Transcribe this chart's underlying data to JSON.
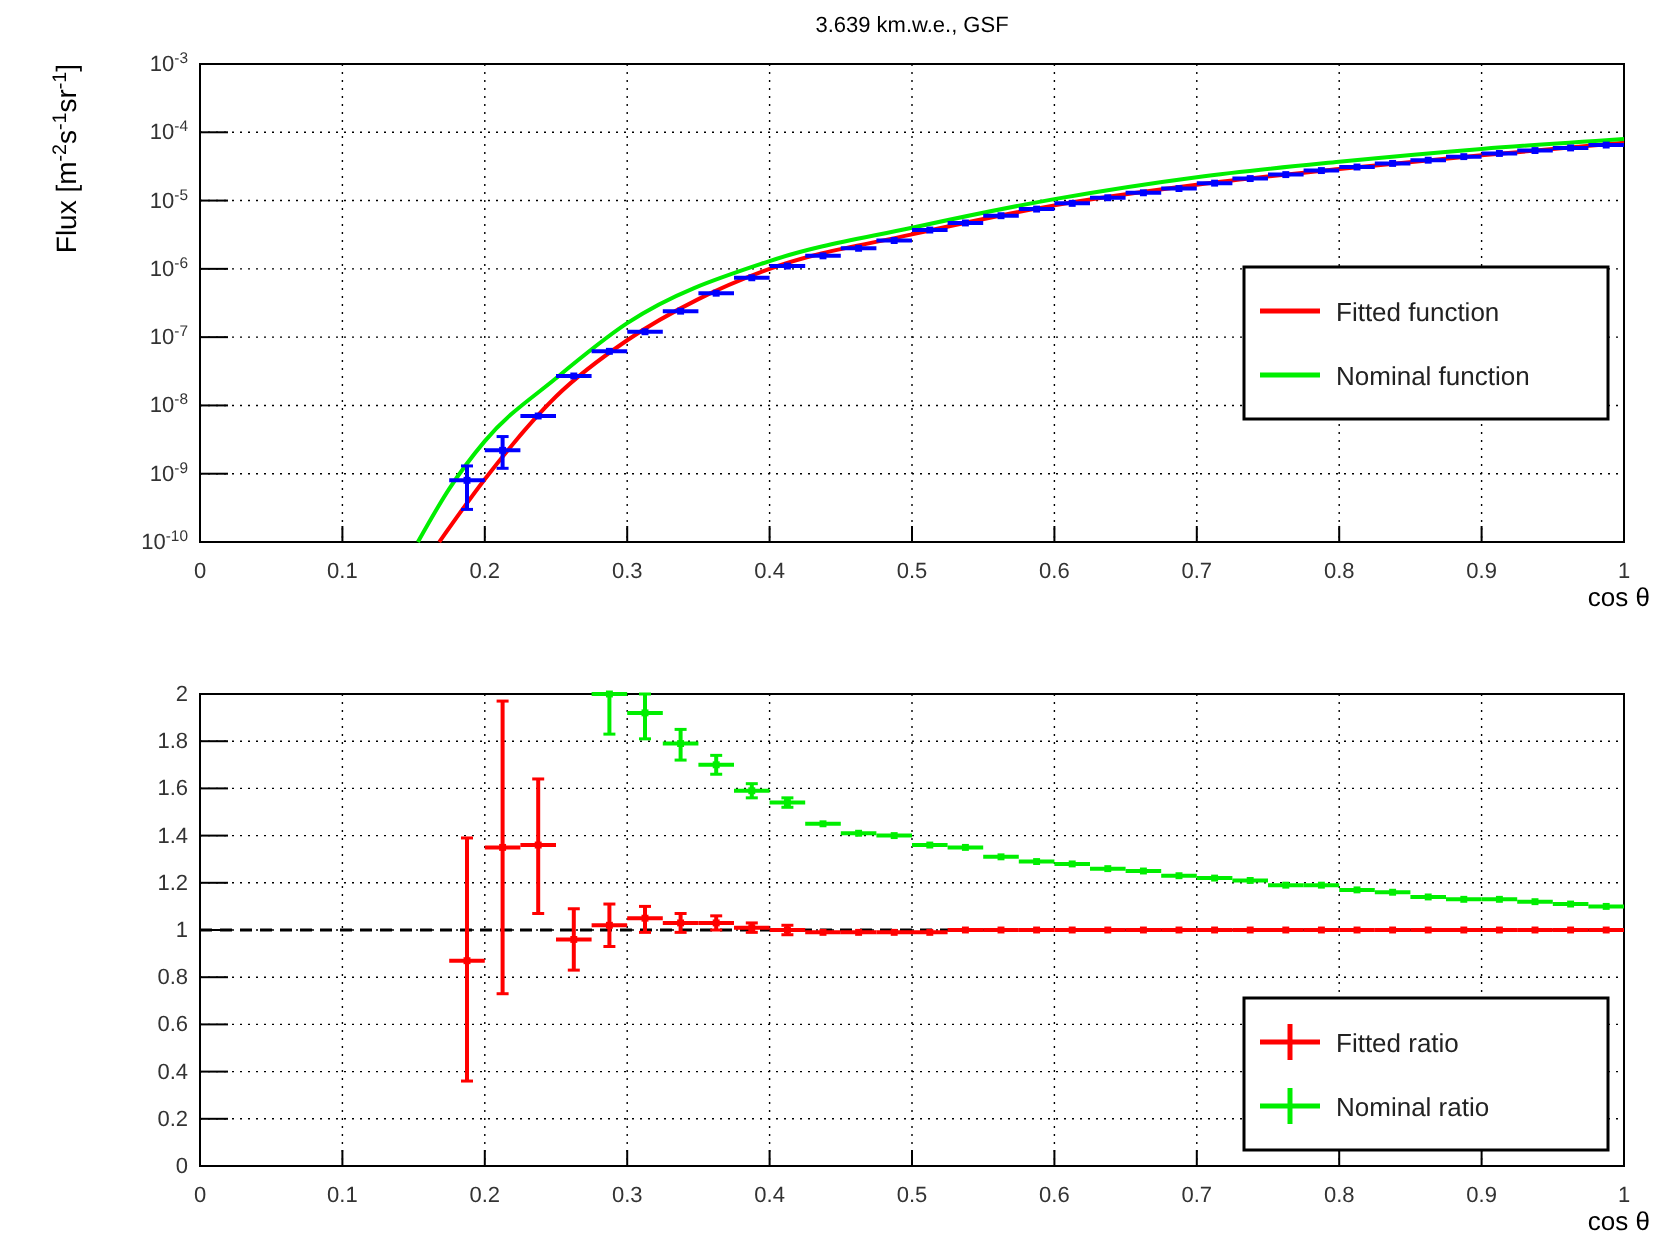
{
  "chart_data": [
    {
      "type": "scatter",
      "title": "3.639 km.w.e., GSF",
      "xlabel": "cos θ",
      "ylabel": "Flux [m$^{-2}$s$^{-1}$sr$^{-1}$]",
      "log": "y",
      "grid": true,
      "legend": "right",
      "xlim": [
        0,
        1
      ],
      "xticks": [
        0,
        0.1,
        0.2,
        0.3,
        0.4,
        0.5,
        0.6,
        0.7,
        0.8,
        0.9,
        1
      ],
      "ylim": [
        1e-10,
        0.001
      ],
      "yticks": [
        {
          "value": 1e-10,
          "label": "10$^{-10}$"
        },
        {
          "value": 1e-09,
          "label": "10$^{-9}$"
        },
        {
          "value": 1e-08,
          "label": "10$^{-8}$"
        },
        {
          "value": 1e-07,
          "label": "10$^{-7}$"
        },
        {
          "value": 1e-06,
          "label": "10$^{-6}$"
        },
        {
          "value": 1e-05,
          "label": "10$^{-5}$"
        },
        {
          "value": 0.0001,
          "label": "10$^{-4}$"
        },
        {
          "value": 0.001,
          "label": "10$^{-3}$"
        }
      ],
      "series": [
        {
          "color": "#0000ff",
          "marker": "square",
          "x": [
            0.1875,
            0.2125,
            0.2375,
            0.2625,
            0.2875,
            0.3125,
            0.3375,
            0.3625,
            0.3875,
            0.4125,
            0.4375,
            0.4625,
            0.4875,
            0.5125,
            0.5375,
            0.5625,
            0.5875,
            0.6125,
            0.6375,
            0.6625,
            0.6875,
            0.7125,
            0.7375,
            0.7625,
            0.7875,
            0.8125,
            0.8375,
            0.8625,
            0.8875,
            0.9125,
            0.9375,
            0.9625,
            0.9875
          ],
          "values": [
            8e-10,
            2.2e-09,
            7e-09,
            2.7e-08,
            6.2e-08,
            1.2e-07,
            2.4e-07,
            4.4e-07,
            7.4e-07,
            1.1e-06,
            1.55e-06,
            2e-06,
            2.6e-06,
            3.7e-06,
            4.7e-06,
            6e-06,
            7.5e-06,
            9.1e-06,
            1.1e-05,
            1.3e-05,
            1.5e-05,
            1.8e-05,
            2.1e-05,
            2.4e-05,
            2.75e-05,
            3.1e-05,
            3.5e-05,
            3.9e-05,
            4.4e-05,
            4.9e-05,
            5.4e-05,
            5.9e-05,
            6.5e-05
          ],
          "errors": [
            [
              3e-10,
              1.3e-09
            ],
            [
              1.2e-09,
              3.5e-09
            ],
            null,
            null,
            null,
            null,
            null,
            null,
            null,
            null,
            null,
            null,
            null,
            null,
            null,
            null,
            null,
            null,
            null,
            null,
            null,
            null,
            null,
            null,
            null,
            null,
            null,
            null,
            null,
            null,
            null,
            null,
            null
          ],
          "xerrors": [
            0.0125,
            0.0125,
            0.0125,
            0.0125,
            0.0125,
            0.0125,
            0.0125,
            0.0125,
            0.0125,
            0.0125,
            0.0125,
            0.0125,
            0.0125,
            0.0125,
            0.0125,
            0.0125,
            0.0125,
            0.0125,
            0.0125,
            0.0125,
            0.0125,
            0.0125,
            0.0125,
            0.0125,
            0.0125,
            0.0125,
            0.0125,
            0.0125,
            0.0125,
            0.0125,
            0.0125,
            0.0125,
            0.0125
          ]
        },
        {
          "type": "line",
          "name": "Fitted function",
          "color": "#ff0000",
          "x": [
            0.168,
            0.2,
            0.25,
            0.3,
            0.35,
            0.4,
            0.5,
            0.6,
            0.7,
            0.8,
            0.9,
            1.0
          ],
          "values": [
            1e-10,
            8.3e-10,
            1.35e-08,
            9e-08,
            3.6e-07,
            1e-06,
            3.2e-06,
            8.5e-06,
            1.7e-05,
            2.9e-05,
            4.6e-05,
            7e-05
          ]
        },
        {
          "type": "line",
          "name": "Nominal function",
          "color": "#00ee00",
          "x": [
            0.153,
            0.175,
            0.2,
            0.25,
            0.3,
            0.4,
            0.5,
            0.6,
            0.7,
            0.8,
            0.9,
            1.0
          ],
          "values": [
            1e-10,
            6e-10,
            3e-09,
            2.5e-08,
            1.6e-07,
            1.3e-06,
            4e-06,
            1.05e-05,
            2.2e-05,
            3.7e-05,
            5.7e-05,
            8e-05
          ]
        }
      ]
    },
    {
      "type": "scatter",
      "xlabel": "cos θ",
      "grid": true,
      "legend": "bottom right",
      "marker": "square",
      "xlim": [
        0,
        1
      ],
      "xticks": [
        0,
        0.1,
        0.2,
        0.3,
        0.4,
        0.5,
        0.6,
        0.7,
        0.8,
        0.9,
        1
      ],
      "ylim": [
        0,
        2
      ],
      "yticks": [
        0,
        0.2,
        0.4,
        0.6,
        0.8,
        1,
        1.2,
        1.4,
        1.6,
        1.8,
        2
      ],
      "ref_lines": [
        {
          "axis": "y",
          "value": 1,
          "color": "#000000",
          "line_style": "dashed"
        }
      ],
      "series": [
        {
          "name": "Fitted ratio",
          "color": "#ff0000",
          "x": [
            0.1875,
            0.2125,
            0.2375,
            0.2625,
            0.2875,
            0.3125,
            0.3375,
            0.3625,
            0.3875,
            0.4125,
            0.4375,
            0.4625,
            0.4875,
            0.5125,
            0.5375,
            0.5625,
            0.5875,
            0.6125,
            0.6375,
            0.6625,
            0.6875,
            0.7125,
            0.7375,
            0.7625,
            0.7875,
            0.8125,
            0.8375,
            0.8625,
            0.8875,
            0.9125,
            0.9375,
            0.9625,
            0.9875
          ],
          "values": [
            0.87,
            1.35,
            1.36,
            0.96,
            1.02,
            1.05,
            1.03,
            1.03,
            1.01,
            1.0,
            0.99,
            0.99,
            0.99,
            0.99,
            1.0,
            1.0,
            1.0,
            1.0,
            1.0,
            1.0,
            1.0,
            1.0,
            1.0,
            1.0,
            1.0,
            1.0,
            1.0,
            1.0,
            1.0,
            1.0,
            1.0,
            1.0,
            1.0
          ],
          "errors": [
            [
              0.36,
              1.39
            ],
            [
              0.73,
              1.97
            ],
            [
              1.07,
              1.64
            ],
            [
              0.83,
              1.09
            ],
            [
              0.93,
              1.11
            ],
            [
              0.99,
              1.1
            ],
            [
              0.99,
              1.07
            ],
            [
              1.0,
              1.06
            ],
            [
              0.99,
              1.03
            ],
            [
              0.98,
              1.02
            ],
            null,
            null,
            null,
            null,
            null,
            null,
            null,
            null,
            null,
            null,
            null,
            null,
            null,
            null,
            null,
            null,
            null,
            null,
            null,
            null,
            null,
            null,
            null
          ],
          "xerrors": [
            0.0125,
            0.0125,
            0.0125,
            0.0125,
            0.0125,
            0.0125,
            0.0125,
            0.0125,
            0.0125,
            0.0125,
            0.0125,
            0.0125,
            0.0125,
            0.0125,
            0.0125,
            0.0125,
            0.0125,
            0.0125,
            0.0125,
            0.0125,
            0.0125,
            0.0125,
            0.0125,
            0.0125,
            0.0125,
            0.0125,
            0.0125,
            0.0125,
            0.0125,
            0.0125,
            0.0125,
            0.0125,
            0.0125
          ]
        },
        {
          "name": "Nominal ratio",
          "color": "#00ee00",
          "x": [
            0.2875,
            0.3125,
            0.3375,
            0.3625,
            0.3875,
            0.4125,
            0.4375,
            0.4625,
            0.4875,
            0.5125,
            0.5375,
            0.5625,
            0.5875,
            0.6125,
            0.6375,
            0.6625,
            0.6875,
            0.7125,
            0.7375,
            0.7625,
            0.7875,
            0.8125,
            0.8375,
            0.8625,
            0.8875,
            0.9125,
            0.9375,
            0.9625,
            0.9875
          ],
          "values": [
            2.0,
            1.92,
            1.79,
            1.7,
            1.59,
            1.54,
            1.45,
            1.41,
            1.4,
            1.36,
            1.35,
            1.31,
            1.29,
            1.28,
            1.26,
            1.25,
            1.23,
            1.22,
            1.21,
            1.19,
            1.19,
            1.17,
            1.16,
            1.14,
            1.13,
            1.13,
            1.12,
            1.11,
            1.1
          ],
          "errors": [
            [
              1.83,
              2.0
            ],
            [
              1.81,
              2.0
            ],
            [
              1.72,
              1.85
            ],
            [
              1.66,
              1.74
            ],
            [
              1.56,
              1.62
            ],
            [
              1.52,
              1.56
            ],
            null,
            null,
            null,
            null,
            null,
            null,
            null,
            null,
            null,
            null,
            null,
            null,
            null,
            null,
            null,
            null,
            null,
            null,
            null,
            null,
            null,
            null,
            null
          ],
          "xerrors": [
            0.0125,
            0.0125,
            0.0125,
            0.0125,
            0.0125,
            0.0125,
            0.0125,
            0.0125,
            0.0125,
            0.0125,
            0.0125,
            0.0125,
            0.0125,
            0.0125,
            0.0125,
            0.0125,
            0.0125,
            0.0125,
            0.0125,
            0.0125,
            0.0125,
            0.0125,
            0.0125,
            0.0125,
            0.0125,
            0.0125,
            0.0125,
            0.0125,
            0.0125
          ]
        }
      ]
    }
  ]
}
